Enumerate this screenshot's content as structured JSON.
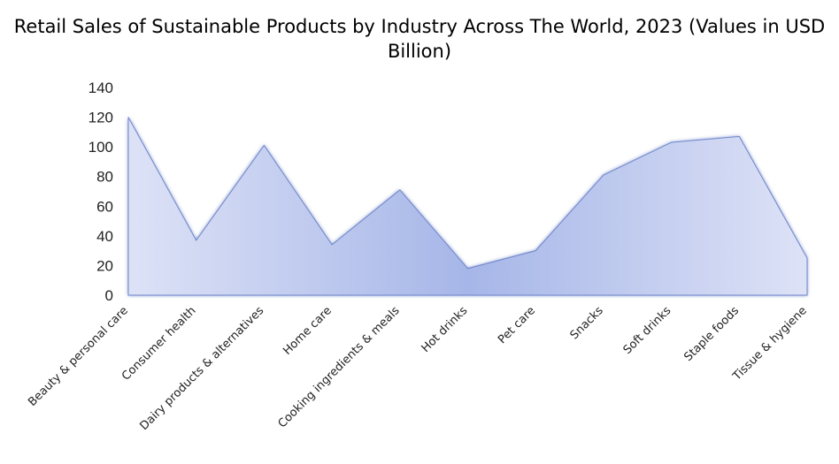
{
  "chart_data": {
    "type": "area",
    "title": "Retail Sales of Sustainable Products by Industry Across The World, 2023 (Values in USD Billion)",
    "xlabel": "",
    "ylabel": "",
    "categories": [
      "Beauty & personal care",
      "Consumer health",
      "Dairy products & alternatives",
      "Home care",
      "Cooking ingredients & meals",
      "Hot drinks",
      "Pet care",
      "Snacks",
      "Soft drinks",
      "Staple foods",
      "Tissue & hygiene"
    ],
    "values": [
      120,
      37,
      101,
      34,
      71,
      18,
      30,
      81,
      103,
      107,
      25
    ],
    "ylim": [
      0,
      140
    ],
    "yticks": [
      0,
      20,
      40,
      60,
      80,
      100,
      120,
      140
    ],
    "grid": false,
    "legend": "none",
    "colors": {
      "fill_light": "#dde2f6",
      "fill_dark": "#a6b6e8",
      "edge": "#6f86c9"
    }
  }
}
